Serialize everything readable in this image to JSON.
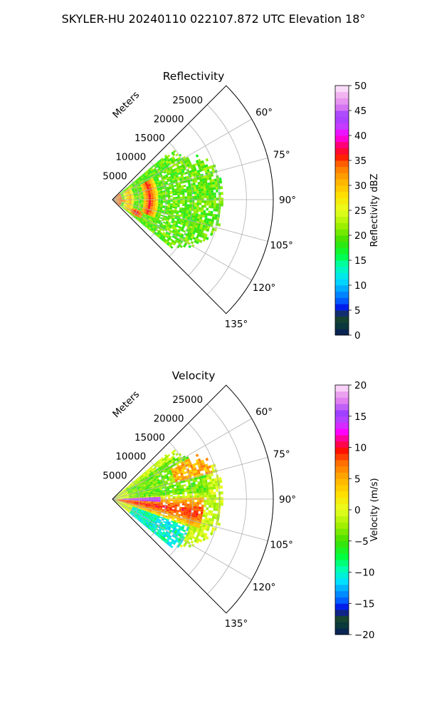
{
  "figure": {
    "suptitle": "SKYLER-HU  20240110  022107.872 UTC Elevation 18°"
  },
  "chart_data": [
    {
      "type": "heatmap",
      "subtype": "polar-sector",
      "title": "Reflectivity",
      "radial_label": "Meters",
      "radial_ticks": [
        5000,
        10000,
        15000,
        20000,
        25000
      ],
      "radial_tick_labels": [
        "5000",
        "10000",
        "15000",
        "20000",
        "25000"
      ],
      "rlim": [
        0,
        30000
      ],
      "theta_range_deg": [
        45,
        135
      ],
      "theta_ticks": [
        60,
        75,
        90,
        105,
        120,
        135
      ],
      "theta_tick_labels": [
        "60°",
        "75°",
        "90°",
        "105°",
        "120°",
        "135°"
      ],
      "grid": true,
      "colorbar": {
        "label": "Reflectivity dBZ",
        "range": [
          0,
          50
        ],
        "ticks": [
          0,
          5,
          10,
          15,
          20,
          25,
          30,
          35,
          40,
          45,
          50
        ],
        "tick_labels": [
          "0",
          "5",
          "10",
          "15",
          "20",
          "25",
          "30",
          "35",
          "40",
          "45",
          "50"
        ],
        "stops": [
          {
            "value": 0,
            "color": "#0a1a5c"
          },
          {
            "value": 2,
            "color": "#0b3a3a"
          },
          {
            "value": 4,
            "color": "#1f4a2a"
          },
          {
            "value": 5,
            "color": "#0000e0"
          },
          {
            "value": 7,
            "color": "#0060ff"
          },
          {
            "value": 9,
            "color": "#00a0ff"
          },
          {
            "value": 11,
            "color": "#00e0ff"
          },
          {
            "value": 14,
            "color": "#00ffb0"
          },
          {
            "value": 16,
            "color": "#00ff40"
          },
          {
            "value": 19,
            "color": "#40e000"
          },
          {
            "value": 22,
            "color": "#a0f000"
          },
          {
            "value": 25,
            "color": "#e8ff20"
          },
          {
            "value": 28,
            "color": "#ffe000"
          },
          {
            "value": 31,
            "color": "#ffb000"
          },
          {
            "value": 34,
            "color": "#ff7000"
          },
          {
            "value": 36,
            "color": "#ff1000"
          },
          {
            "value": 38,
            "color": "#ff0070"
          },
          {
            "value": 40,
            "color": "#ff00ff"
          },
          {
            "value": 42,
            "color": "#c040ff"
          },
          {
            "value": 44,
            "color": "#a040ff"
          },
          {
            "value": 46,
            "color": "#e080f0"
          },
          {
            "value": 48,
            "color": "#f0b0f0"
          },
          {
            "value": 50,
            "color": "#fff0ff"
          }
        ]
      },
      "field_summary": {
        "max_range_m": 21000,
        "background_range_dbz": [
          17,
          23
        ],
        "features": [
          {
            "kind": "arc",
            "center_range_m": 6800,
            "width_m": 900,
            "theta_deg": [
              62,
              112
            ],
            "value_dbz": 35
          },
          {
            "kind": "arc",
            "center_range_m": 3000,
            "width_m": 700,
            "theta_deg": [
              55,
              125
            ],
            "value_dbz": 30
          },
          {
            "kind": "blob",
            "range_m": 4800,
            "theta_deg": 118,
            "spread_m": 1000,
            "value_dbz": 38
          },
          {
            "kind": "blob",
            "range_m": 1500,
            "theta_deg": 95,
            "spread_m": 800,
            "value_dbz": 36
          }
        ]
      }
    },
    {
      "type": "heatmap",
      "subtype": "polar-sector",
      "title": "Velocity",
      "radial_label": "Meters",
      "radial_ticks": [
        5000,
        10000,
        15000,
        20000,
        25000
      ],
      "radial_tick_labels": [
        "5000",
        "10000",
        "15000",
        "20000",
        "25000"
      ],
      "rlim": [
        0,
        30000
      ],
      "theta_range_deg": [
        45,
        135
      ],
      "theta_ticks": [
        60,
        75,
        90,
        105,
        120,
        135
      ],
      "theta_tick_labels": [
        "60°",
        "75°",
        "90°",
        "105°",
        "120°",
        "135°"
      ],
      "grid": true,
      "colorbar": {
        "label": "Velocity (m/s)",
        "range": [
          -20,
          20
        ],
        "ticks": [
          -20,
          -15,
          -10,
          -5,
          0,
          5,
          10,
          15,
          20
        ],
        "tick_labels": [
          "−20",
          "−15",
          "−10",
          "−5",
          "0",
          "5",
          "10",
          "15",
          "20"
        ],
        "stops": [
          {
            "value": -20,
            "color": "#0a1a5c"
          },
          {
            "value": -18.5,
            "color": "#0b3a3a"
          },
          {
            "value": -17,
            "color": "#1f4a2a"
          },
          {
            "value": -16,
            "color": "#0000e0"
          },
          {
            "value": -14.5,
            "color": "#0060ff"
          },
          {
            "value": -13,
            "color": "#00a0ff"
          },
          {
            "value": -11.5,
            "color": "#00e0ff"
          },
          {
            "value": -9.5,
            "color": "#00ffb0"
          },
          {
            "value": -7.5,
            "color": "#00ff40"
          },
          {
            "value": -5,
            "color": "#40e000"
          },
          {
            "value": -2.5,
            "color": "#a0f000"
          },
          {
            "value": 0,
            "color": "#e8ff20"
          },
          {
            "value": 2.5,
            "color": "#ffe000"
          },
          {
            "value": 5,
            "color": "#ffb000"
          },
          {
            "value": 7.5,
            "color": "#ff7000"
          },
          {
            "value": 9.5,
            "color": "#ff1000"
          },
          {
            "value": 11,
            "color": "#ff0070"
          },
          {
            "value": 12.5,
            "color": "#ff00ff"
          },
          {
            "value": 14,
            "color": "#c040ff"
          },
          {
            "value": 15.5,
            "color": "#a040ff"
          },
          {
            "value": 17.5,
            "color": "#e080f0"
          },
          {
            "value": 19,
            "color": "#f0b0f0"
          },
          {
            "value": 20,
            "color": "#fff0ff"
          }
        ]
      },
      "field_summary": {
        "max_range_m": 21000,
        "pattern": "inbound (negative, green/cyan) on the upper and lower flanks, outbound (positive, yellow/red/magenta) band along ~90°–105°",
        "features": [
          {
            "kind": "band",
            "theta_deg": [
              88,
              108
            ],
            "range_m": [
              500,
              17000
            ],
            "value_ms": 8
          },
          {
            "kind": "edge",
            "theta_deg": 90,
            "range_m": [
              1500,
              9000
            ],
            "value_ms": 13
          },
          {
            "kind": "region",
            "theta_deg": [
              55,
              85
            ],
            "range_m": [
              3000,
              18000
            ],
            "value_ms": -4
          },
          {
            "kind": "region",
            "theta_deg": [
              110,
              128
            ],
            "range_m": [
              4000,
              15000
            ],
            "value_ms": -10
          },
          {
            "kind": "region",
            "theta_deg": [
              62,
              75
            ],
            "range_m": [
              12000,
              19000
            ],
            "value_ms": 5
          }
        ]
      }
    }
  ]
}
